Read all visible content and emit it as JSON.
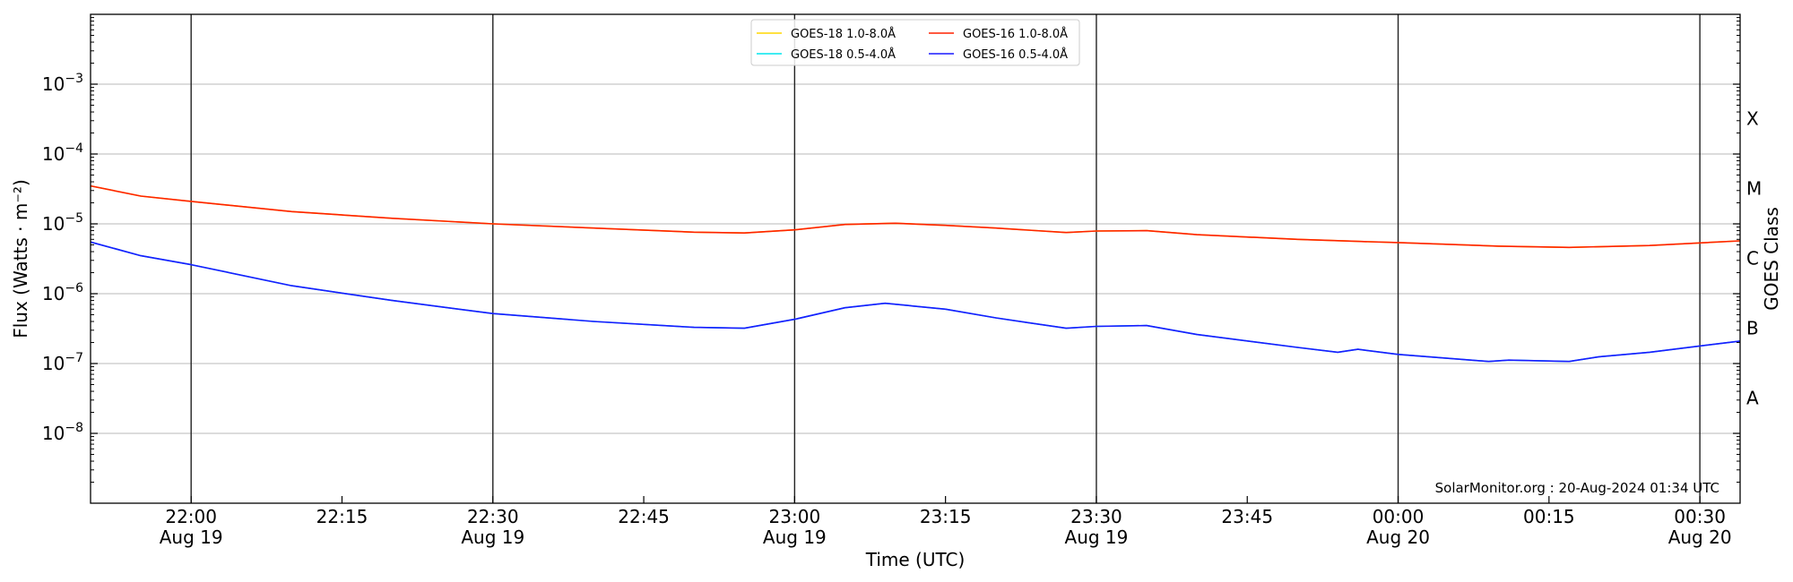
{
  "chart_data": {
    "type": "line",
    "xlabel": "Time (UTC)",
    "ylabel": "Flux (Watts · m⁻²)",
    "y2label": "GOES Class",
    "y_scale": "log",
    "ylim": [
      1e-09,
      0.01
    ],
    "xlim": [
      "2024-08-19T21:50",
      "2024-08-20T00:34"
    ],
    "y_ticks": [
      {
        "value": 1e-08,
        "base": "10",
        "exp": "−8"
      },
      {
        "value": 1e-07,
        "base": "10",
        "exp": "−7"
      },
      {
        "value": 1e-06,
        "base": "10",
        "exp": "−6"
      },
      {
        "value": 1e-05,
        "base": "10",
        "exp": "−5"
      },
      {
        "value": 0.0001,
        "base": "10",
        "exp": "−4"
      },
      {
        "value": 0.001,
        "base": "10",
        "exp": "−3"
      }
    ],
    "x_ticks": [
      {
        "t": "2024-08-19T22:00",
        "time": "22:00",
        "date": "Aug 19"
      },
      {
        "t": "2024-08-19T22:15",
        "time": "22:15",
        "date": ""
      },
      {
        "t": "2024-08-19T22:30",
        "time": "22:30",
        "date": "Aug 19"
      },
      {
        "t": "2024-08-19T22:45",
        "time": "22:45",
        "date": ""
      },
      {
        "t": "2024-08-19T23:00",
        "time": "23:00",
        "date": "Aug 19"
      },
      {
        "t": "2024-08-19T23:15",
        "time": "23:15",
        "date": ""
      },
      {
        "t": "2024-08-19T23:30",
        "time": "23:30",
        "date": "Aug 19"
      },
      {
        "t": "2024-08-19T23:45",
        "time": "23:45",
        "date": ""
      },
      {
        "t": "2024-08-20T00:00",
        "time": "00:00",
        "date": "Aug 20"
      },
      {
        "t": "2024-08-20T00:15",
        "time": "00:15",
        "date": ""
      },
      {
        "t": "2024-08-20T00:30",
        "time": "00:30",
        "date": "Aug 20"
      }
    ],
    "vlines": [
      "2024-08-19T22:00",
      "2024-08-19T22:30",
      "2024-08-19T23:00",
      "2024-08-19T23:30",
      "2024-08-20T00:00",
      "2024-08-20T00:30"
    ],
    "hgrid": [
      1e-08,
      1e-07,
      1e-06,
      1e-05,
      0.0001,
      0.001
    ],
    "goes_classes": [
      {
        "label": "A",
        "value": 3.2e-08
      },
      {
        "label": "B",
        "value": 3.2e-07
      },
      {
        "label": "C",
        "value": 3.2e-06
      },
      {
        "label": "M",
        "value": 3.2e-05
      },
      {
        "label": "X",
        "value": 0.00032
      }
    ],
    "legend": {
      "placement": "top-center",
      "entries": [
        {
          "name": "GOES-18 1.0-8.0Å",
          "color": "#ffd700"
        },
        {
          "name": "GOES-18 0.5-4.0Å",
          "color": "#00e5ee"
        },
        {
          "name": "GOES-16 1.0-8.0Å",
          "color": "#ff2200"
        },
        {
          "name": "GOES-16 0.5-4.0Å",
          "color": "#1a1aff"
        }
      ]
    },
    "series": [
      {
        "name": "GOES-18 1.0-8.0Å",
        "color": "#ffd700",
        "x": [
          "2024-08-19T21:50",
          "2024-08-19T21:55",
          "2024-08-19T22:00",
          "2024-08-19T22:10",
          "2024-08-19T22:20",
          "2024-08-19T22:30",
          "2024-08-19T22:40",
          "2024-08-19T22:50",
          "2024-08-19T22:55",
          "2024-08-19T23:00",
          "2024-08-19T23:05",
          "2024-08-19T23:10",
          "2024-08-19T23:15",
          "2024-08-19T23:20",
          "2024-08-19T23:27",
          "2024-08-19T23:30",
          "2024-08-19T23:35",
          "2024-08-19T23:40",
          "2024-08-19T23:50",
          "2024-08-19T23:56",
          "2024-08-20T00:00",
          "2024-08-20T00:10",
          "2024-08-20T00:17",
          "2024-08-20T00:25",
          "2024-08-20T00:34"
        ],
        "y": [
          3.5e-05,
          2.5e-05,
          2.1e-05,
          1.5e-05,
          1.2e-05,
          1e-05,
          8.7e-06,
          7.6e-06,
          7.4e-06,
          8.2e-06,
          9.8e-06,
          1.02e-05,
          9.5e-06,
          8.7e-06,
          7.5e-06,
          7.9e-06,
          8e-06,
          7e-06,
          6e-06,
          5.6e-06,
          5.4e-06,
          4.8e-06,
          4.6e-06,
          4.9e-06,
          5.7e-06
        ]
      },
      {
        "name": "GOES-16 1.0-8.0Å",
        "color": "#ff2200",
        "x": [
          "2024-08-19T21:50",
          "2024-08-19T21:55",
          "2024-08-19T22:00",
          "2024-08-19T22:10",
          "2024-08-19T22:20",
          "2024-08-19T22:30",
          "2024-08-19T22:40",
          "2024-08-19T22:50",
          "2024-08-19T22:55",
          "2024-08-19T23:00",
          "2024-08-19T23:05",
          "2024-08-19T23:10",
          "2024-08-19T23:15",
          "2024-08-19T23:20",
          "2024-08-19T23:27",
          "2024-08-19T23:30",
          "2024-08-19T23:35",
          "2024-08-19T23:40",
          "2024-08-19T23:50",
          "2024-08-19T23:56",
          "2024-08-20T00:00",
          "2024-08-20T00:10",
          "2024-08-20T00:17",
          "2024-08-20T00:25",
          "2024-08-20T00:34"
        ],
        "y": [
          3.5e-05,
          2.5e-05,
          2.1e-05,
          1.5e-05,
          1.2e-05,
          1e-05,
          8.7e-06,
          7.6e-06,
          7.4e-06,
          8.2e-06,
          9.8e-06,
          1.02e-05,
          9.5e-06,
          8.7e-06,
          7.5e-06,
          7.9e-06,
          8e-06,
          7e-06,
          6e-06,
          5.6e-06,
          5.4e-06,
          4.8e-06,
          4.6e-06,
          4.9e-06,
          5.7e-06
        ]
      },
      {
        "name": "GOES-18 0.5-4.0Å",
        "color": "#00e5ee",
        "x": [
          "2024-08-19T21:50",
          "2024-08-19T21:55",
          "2024-08-19T22:00",
          "2024-08-19T22:10",
          "2024-08-19T22:20",
          "2024-08-19T22:30",
          "2024-08-19T22:40",
          "2024-08-19T22:50",
          "2024-08-19T22:55",
          "2024-08-19T23:00",
          "2024-08-19T23:05",
          "2024-08-19T23:09",
          "2024-08-19T23:15",
          "2024-08-19T23:20",
          "2024-08-19T23:27",
          "2024-08-19T23:30",
          "2024-08-19T23:35",
          "2024-08-19T23:40",
          "2024-08-19T23:50",
          "2024-08-19T23:54",
          "2024-08-19T23:56",
          "2024-08-20T00:00",
          "2024-08-20T00:09",
          "2024-08-20T00:11",
          "2024-08-20T00:17",
          "2024-08-20T00:20",
          "2024-08-20T00:25",
          "2024-08-20T00:34"
        ],
        "y": [
          5.5e-06,
          3.5e-06,
          2.6e-06,
          1.3e-06,
          8e-07,
          5.2e-07,
          4e-07,
          3.3e-07,
          3.2e-07,
          4.3e-07,
          6.3e-07,
          7.3e-07,
          6e-07,
          4.5e-07,
          3.2e-07,
          3.4e-07,
          3.5e-07,
          2.6e-07,
          1.7e-07,
          1.45e-07,
          1.6e-07,
          1.35e-07,
          1.07e-07,
          1.12e-07,
          1.07e-07,
          1.25e-07,
          1.45e-07,
          2.1e-07
        ]
      },
      {
        "name": "GOES-16 0.5-4.0Å",
        "color": "#1a1aff",
        "x": [
          "2024-08-19T21:50",
          "2024-08-19T21:55",
          "2024-08-19T22:00",
          "2024-08-19T22:10",
          "2024-08-19T22:20",
          "2024-08-19T22:30",
          "2024-08-19T22:40",
          "2024-08-19T22:50",
          "2024-08-19T22:55",
          "2024-08-19T23:00",
          "2024-08-19T23:05",
          "2024-08-19T23:09",
          "2024-08-19T23:15",
          "2024-08-19T23:20",
          "2024-08-19T23:27",
          "2024-08-19T23:30",
          "2024-08-19T23:35",
          "2024-08-19T23:40",
          "2024-08-19T23:50",
          "2024-08-19T23:54",
          "2024-08-19T23:56",
          "2024-08-20T00:00",
          "2024-08-20T00:09",
          "2024-08-20T00:11",
          "2024-08-20T00:17",
          "2024-08-20T00:20",
          "2024-08-20T00:25",
          "2024-08-20T00:34"
        ],
        "y": [
          5.5e-06,
          3.5e-06,
          2.6e-06,
          1.3e-06,
          8e-07,
          5.2e-07,
          4e-07,
          3.3e-07,
          3.2e-07,
          4.3e-07,
          6.3e-07,
          7.3e-07,
          6e-07,
          4.5e-07,
          3.2e-07,
          3.4e-07,
          3.5e-07,
          2.6e-07,
          1.7e-07,
          1.45e-07,
          1.6e-07,
          1.35e-07,
          1.07e-07,
          1.12e-07,
          1.07e-07,
          1.25e-07,
          1.45e-07,
          2.1e-07
        ]
      }
    ],
    "credit": "SolarMonitor.org : 20-Aug-2024 01:34 UTC"
  }
}
